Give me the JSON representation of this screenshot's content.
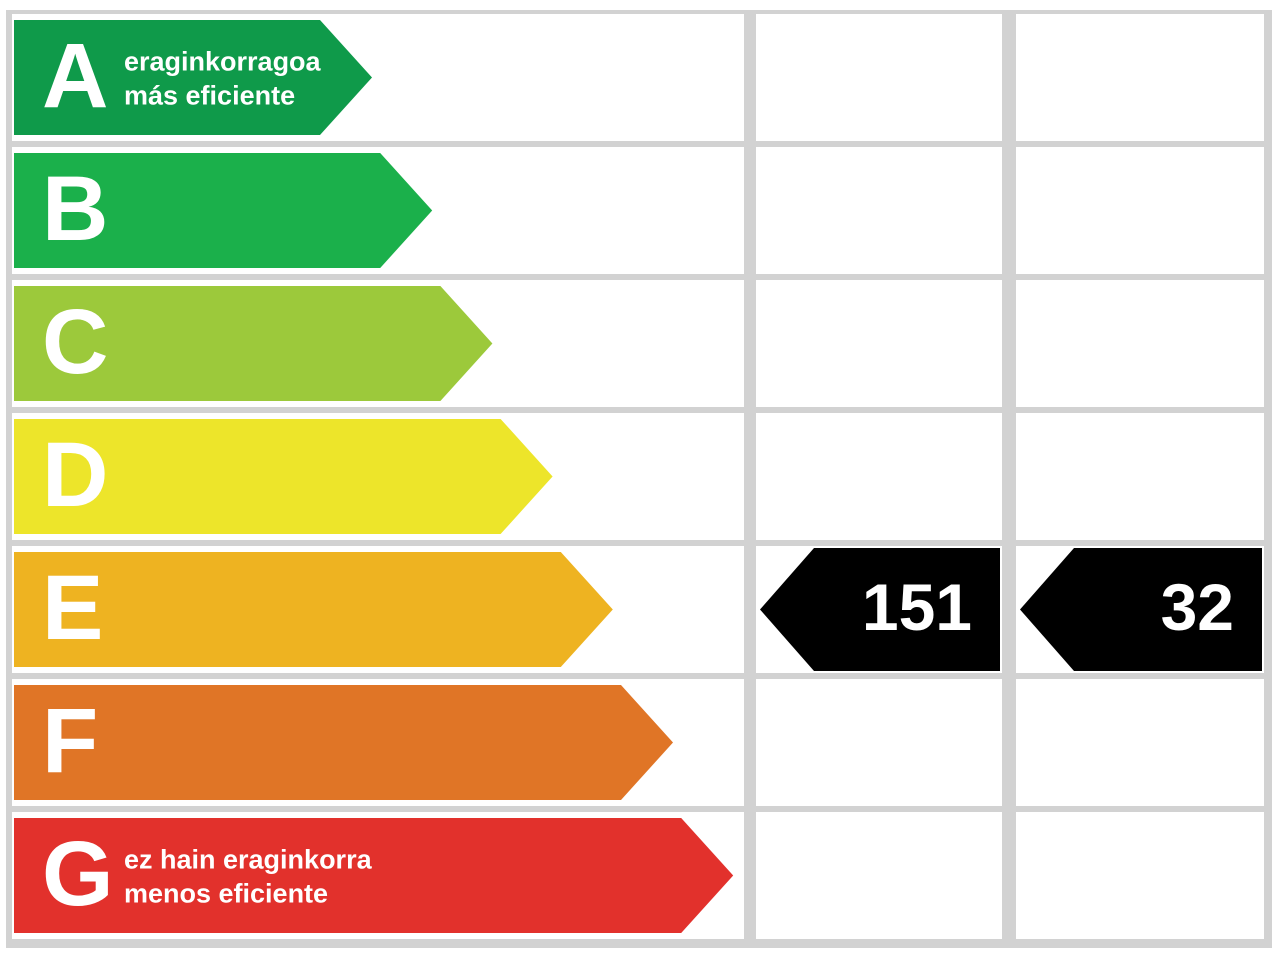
{
  "rows": [
    {
      "letter": "A",
      "line1": "eraginkorragoa",
      "line2": "más eficiente",
      "color": "#0f9a4a"
    },
    {
      "letter": "B",
      "color": "#1bb04b"
    },
    {
      "letter": "C",
      "color": "#9cc93b"
    },
    {
      "letter": "D",
      "color": "#ede52a"
    },
    {
      "letter": "E",
      "color": "#eeb321",
      "values": [
        151,
        32
      ]
    },
    {
      "letter": "F",
      "color": "#e07526"
    },
    {
      "letter": "G",
      "line1": "ez hain eraginkorra",
      "line2": "menos eficiente",
      "color": "#e2312c"
    }
  ]
}
